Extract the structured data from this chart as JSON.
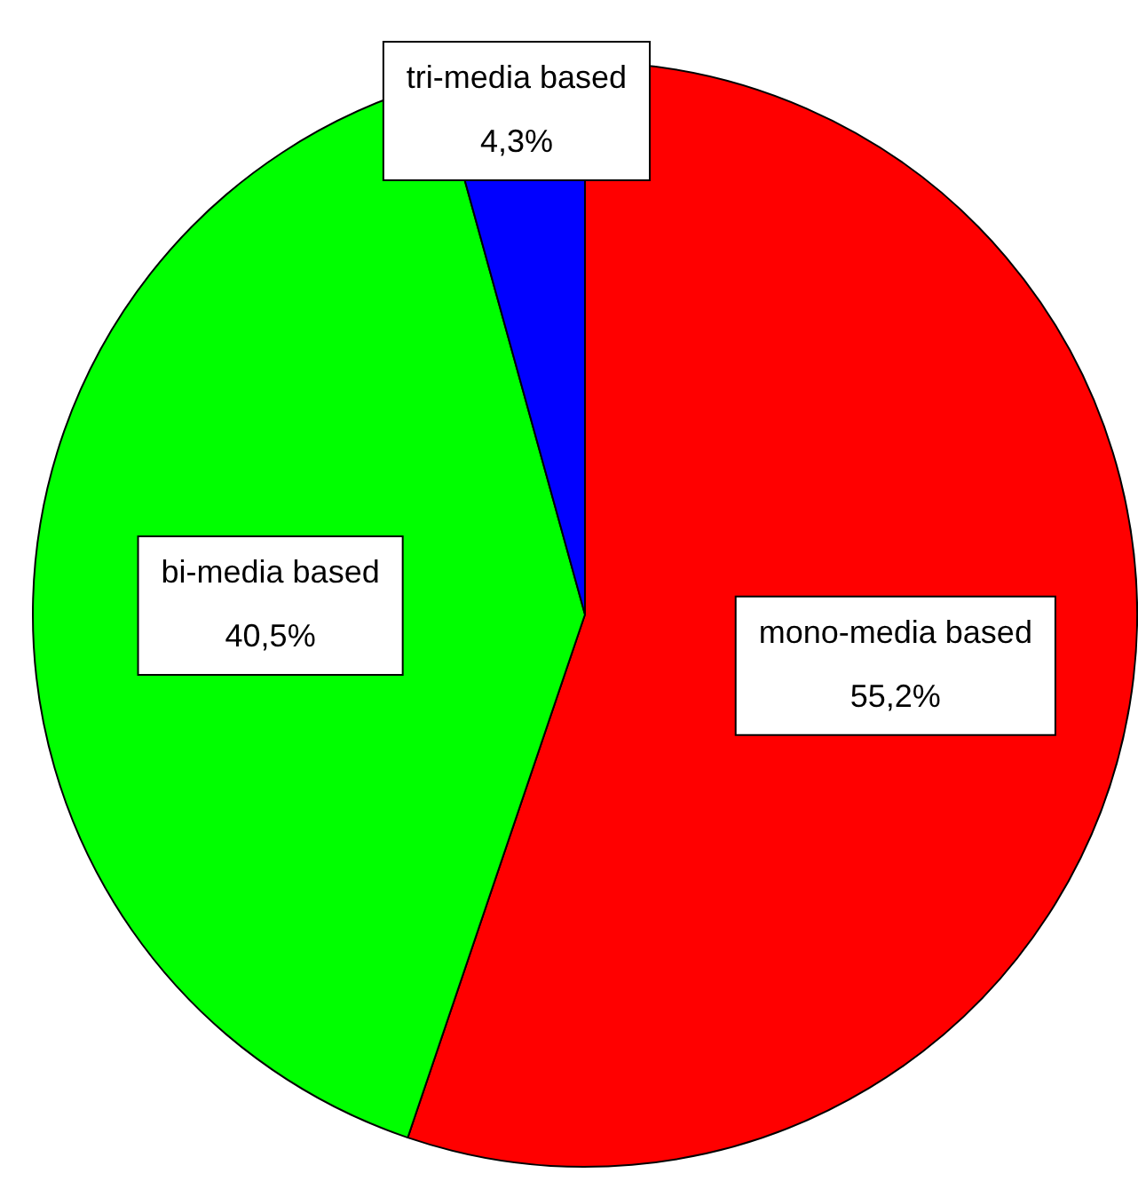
{
  "chart_data": {
    "type": "pie",
    "categories": [
      "mono-media based",
      "bi-media based",
      "tri-media based"
    ],
    "values": [
      55.2,
      40.5,
      4.3
    ],
    "colors": [
      "#ff0000",
      "#00ff00",
      "#0000ff"
    ],
    "value_labels": [
      "55,2%",
      "40,5%",
      "4,3%"
    ],
    "legend": false
  }
}
